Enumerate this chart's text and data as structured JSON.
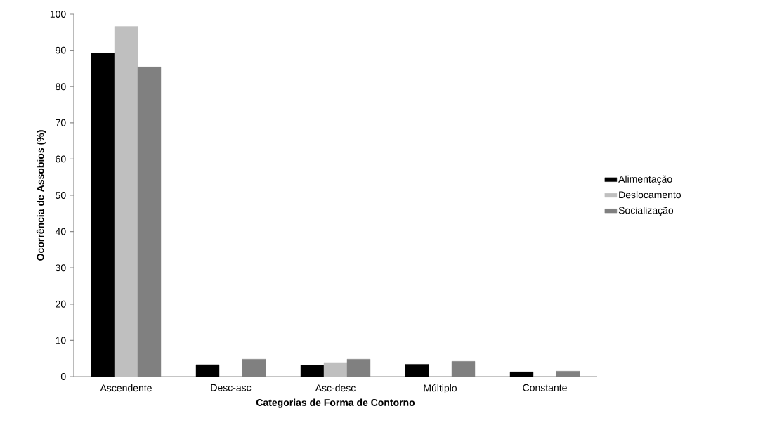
{
  "chart_data": {
    "type": "bar",
    "xlabel": "Categorias de Forma de Contorno",
    "ylabel": "Ocorrência de Assobios (%)",
    "categories": [
      "Ascendente",
      "Desc-asc",
      "Asc-desc",
      "Múltiplo",
      "Constante"
    ],
    "series": [
      {
        "name": "Alimentação",
        "color": "#000000",
        "values": [
          89.2,
          3.3,
          3.2,
          3.4,
          1.3
        ]
      },
      {
        "name": "Deslocamento",
        "color": "#bfbfbf",
        "values": [
          96.6,
          0,
          3.9,
          0,
          0
        ]
      },
      {
        "name": "Socialização",
        "color": "#808080",
        "values": [
          85.4,
          4.8,
          4.8,
          4.2,
          1.5
        ]
      }
    ],
    "ylim": [
      0,
      100
    ],
    "yticks": [
      0,
      10,
      20,
      30,
      40,
      50,
      60,
      70,
      80,
      90,
      100
    ],
    "grid": false,
    "legend": "right"
  }
}
